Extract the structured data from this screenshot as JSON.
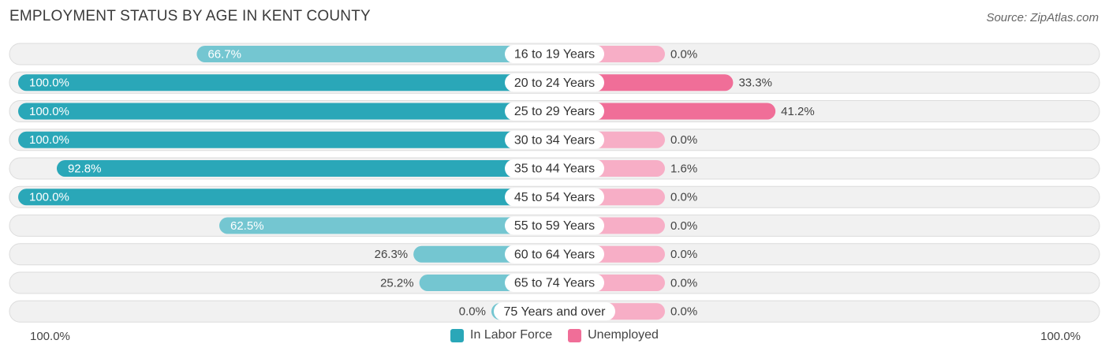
{
  "header": {
    "title": "EMPLOYMENT STATUS BY AGE IN KENT COUNTY",
    "source": "Source: ZipAtlas.com"
  },
  "colors": {
    "labor_strong": "#2aa7b8",
    "labor_light": "#74c6d1",
    "unemp_strong": "#f06e98",
    "unemp_light": "#f7aec6",
    "row_bg": "#f1f1f1",
    "row_border": "#dcdcdc"
  },
  "legend": {
    "labor": "In Labor Force",
    "unemployed": "Unemployed"
  },
  "axis": {
    "left_label": "100.0%",
    "right_label": "100.0%"
  },
  "chart_data": {
    "type": "bar",
    "title": "EMPLOYMENT STATUS BY AGE IN KENT COUNTY",
    "orientation": "diverging-horizontal",
    "categories": [
      "16 to 19 Years",
      "20 to 24 Years",
      "25 to 29 Years",
      "30 to 34 Years",
      "35 to 44 Years",
      "45 to 54 Years",
      "55 to 59 Years",
      "60 to 64 Years",
      "65 to 74 Years",
      "75 Years and over"
    ],
    "series": [
      {
        "name": "In Labor Force",
        "values": [
          66.7,
          100.0,
          100.0,
          100.0,
          92.8,
          100.0,
          62.5,
          26.3,
          25.2,
          0.0
        ],
        "labels": [
          "66.7%",
          "100.0%",
          "100.0%",
          "100.0%",
          "92.8%",
          "100.0%",
          "62.5%",
          "26.3%",
          "25.2%",
          "0.0%"
        ]
      },
      {
        "name": "Unemployed",
        "values": [
          0.0,
          33.3,
          41.2,
          0.0,
          1.6,
          0.0,
          0.0,
          0.0,
          0.0,
          0.0
        ],
        "labels": [
          "0.0%",
          "33.3%",
          "41.2%",
          "0.0%",
          "1.6%",
          "0.0%",
          "0.0%",
          "0.0%",
          "0.0%",
          "0.0%"
        ]
      }
    ],
    "xlim": [
      -100,
      100
    ],
    "legend_position": "bottom-center"
  }
}
